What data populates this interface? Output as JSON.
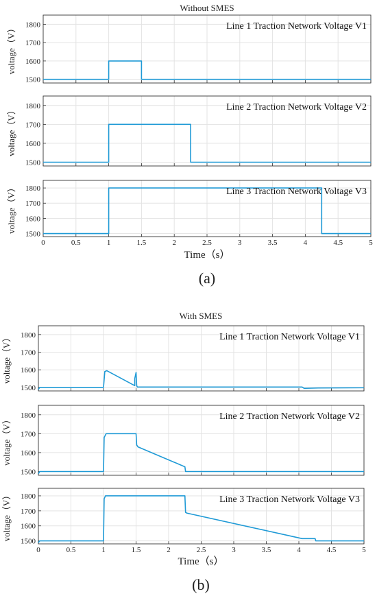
{
  "panels": [
    {
      "label": "(a)",
      "title": "Without SMES",
      "xlabel": "Time（s）",
      "ylabel": "voltage（V）",
      "xticks": [
        "0",
        "0.5",
        "1",
        "1.5",
        "2",
        "2.5",
        "3",
        "3.5",
        "4",
        "4.5",
        "5"
      ]
    },
    {
      "label": "(b)",
      "title": "With SMES",
      "xlabel": "Time（s）",
      "ylabel": "voltage（V）",
      "xticks": [
        "0",
        "0.5",
        "1",
        "1.5",
        "2",
        "2.5",
        "3",
        "3.5",
        "4",
        "4.5",
        "5"
      ]
    }
  ],
  "chart_data": [
    {
      "type": "line",
      "title": "Without SMES",
      "xlabel": "Time（s）",
      "xlim": [
        0,
        5
      ],
      "grid": true,
      "line_color": "#1f9ad6",
      "subplots": [
        {
          "annotation": "Line 1 Traction Network Voltage V1",
          "ylabel": "voltage（V）",
          "ylim": [
            1480,
            1850
          ],
          "yticks": [
            1500,
            1600,
            1700,
            1800
          ],
          "x": [
            0,
            1,
            1,
            1.5,
            1.5,
            5
          ],
          "y": [
            1500,
            1500,
            1600,
            1600,
            1500,
            1500
          ]
        },
        {
          "annotation": "Line 2 Traction Network Voltage V2",
          "ylabel": "voltage（V）",
          "ylim": [
            1480,
            1850
          ],
          "yticks": [
            1500,
            1600,
            1700,
            1800
          ],
          "x": [
            0,
            1,
            1,
            2.25,
            2.25,
            5
          ],
          "y": [
            1500,
            1500,
            1700,
            1700,
            1500,
            1500
          ]
        },
        {
          "annotation": "Line 3 Traction Network Voltage V3",
          "ylabel": "voltage（V）",
          "ylim": [
            1480,
            1850
          ],
          "yticks": [
            1500,
            1600,
            1700,
            1800
          ],
          "x": [
            0,
            1,
            1,
            4.25,
            4.25,
            5
          ],
          "y": [
            1500,
            1500,
            1800,
            1800,
            1500,
            1500
          ]
        }
      ]
    },
    {
      "type": "line",
      "title": "With SMES",
      "xlabel": "Time（s）",
      "xlim": [
        0,
        5
      ],
      "grid": true,
      "line_color": "#1f9ad6",
      "subplots": [
        {
          "annotation": "Line 1 Traction Network Voltage V1",
          "ylabel": "voltage（V）",
          "ylim": [
            1480,
            1850
          ],
          "yticks": [
            1500,
            1600,
            1700,
            1800
          ],
          "x": [
            0,
            0.02,
            1,
            1.02,
            1.05,
            1.48,
            1.48,
            1.5,
            1.51,
            1.52,
            4.05,
            4.08,
            4.1,
            4.3,
            5
          ],
          "y": [
            1488,
            1500,
            1500,
            1590,
            1595,
            1510,
            1550,
            1585,
            1510,
            1502,
            1502,
            1495,
            1495,
            1497,
            1498
          ]
        },
        {
          "annotation": "Line 2 Traction Network Voltage V2",
          "ylabel": "voltage（V）",
          "ylim": [
            1480,
            1850
          ],
          "yticks": [
            1500,
            1600,
            1700,
            1800
          ],
          "x": [
            0,
            0.02,
            1,
            1.01,
            1.04,
            1.5,
            1.51,
            1.53,
            2.25,
            2.26,
            5
          ],
          "y": [
            1488,
            1500,
            1500,
            1680,
            1700,
            1700,
            1640,
            1630,
            1525,
            1500,
            1500
          ]
        },
        {
          "annotation": "Line 3 Traction Network Voltage V3",
          "ylabel": "voltage（V）",
          "ylim": [
            1480,
            1850
          ],
          "yticks": [
            1500,
            1600,
            1700,
            1800
          ],
          "x": [
            0,
            0.02,
            1,
            1.01,
            1.03,
            2.25,
            2.26,
            2.28,
            4.05,
            4.25,
            4.26,
            5
          ],
          "y": [
            1488,
            1500,
            1500,
            1780,
            1800,
            1800,
            1690,
            1685,
            1515,
            1515,
            1500,
            1500
          ]
        }
      ]
    }
  ]
}
